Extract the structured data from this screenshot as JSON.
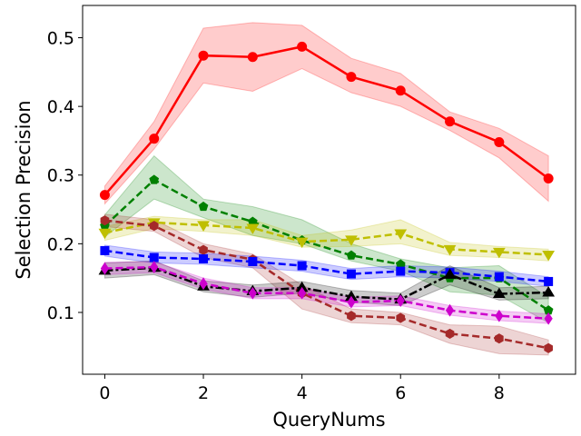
{
  "chart_data": {
    "type": "line",
    "title": "",
    "xlabel": "QueryNums",
    "ylabel": "Selection Precision",
    "xlim": [
      -0.45,
      9.55
    ],
    "ylim": [
      0.01,
      0.547
    ],
    "xticks": [
      0,
      2,
      4,
      6,
      8
    ],
    "yticks": [
      0.1,
      0.2,
      0.3,
      0.4,
      0.5
    ],
    "grid": false,
    "legend": "none",
    "x": [
      0,
      1,
      2,
      3,
      4,
      5,
      6,
      7,
      8,
      9
    ],
    "series": [
      {
        "color": "#ff0000",
        "line": "solid",
        "marker": "circle",
        "values": [
          0.271,
          0.353,
          0.474,
          0.472,
          0.487,
          0.443,
          0.423,
          0.378,
          0.348,
          0.295
        ],
        "lower": [
          0.258,
          0.338,
          0.434,
          0.422,
          0.455,
          0.42,
          0.4,
          0.365,
          0.325,
          0.262
        ],
        "upper": [
          0.284,
          0.378,
          0.514,
          0.522,
          0.518,
          0.47,
          0.448,
          0.392,
          0.368,
          0.328
        ]
      },
      {
        "color": "#008000",
        "line": "dashed",
        "marker": "pentagon",
        "values": [
          0.226,
          0.293,
          0.254,
          0.232,
          0.205,
          0.183,
          0.17,
          0.15,
          0.15,
          0.103
        ],
        "lower": [
          0.21,
          0.265,
          0.238,
          0.212,
          0.2,
          0.175,
          0.16,
          0.13,
          0.125,
          0.085
        ],
        "upper": [
          0.242,
          0.328,
          0.265,
          0.254,
          0.235,
          0.2,
          0.178,
          0.165,
          0.168,
          0.122
        ]
      },
      {
        "color": "#bfbf00",
        "line": "dashed",
        "marker": "triangle-down",
        "values": [
          0.216,
          0.231,
          0.227,
          0.223,
          0.203,
          0.206,
          0.215,
          0.192,
          0.188,
          0.184
        ],
        "lower": [
          0.205,
          0.222,
          0.218,
          0.212,
          0.195,
          0.196,
          0.2,
          0.183,
          0.18,
          0.175
        ],
        "upper": [
          0.225,
          0.24,
          0.235,
          0.235,
          0.212,
          0.22,
          0.235,
          0.202,
          0.196,
          0.192
        ]
      },
      {
        "color": "#a52a2a",
        "line": "dashed",
        "marker": "hexagon",
        "values": [
          0.234,
          0.226,
          0.191,
          0.177,
          0.128,
          0.095,
          0.092,
          0.069,
          0.062,
          0.048
        ],
        "lower": [
          0.225,
          0.218,
          0.18,
          0.165,
          0.105,
          0.085,
          0.082,
          0.055,
          0.04,
          0.038
        ],
        "upper": [
          0.243,
          0.235,
          0.2,
          0.185,
          0.14,
          0.105,
          0.1,
          0.082,
          0.08,
          0.06
        ]
      },
      {
        "color": "#0000ff",
        "line": "dashed",
        "marker": "square",
        "values": [
          0.19,
          0.18,
          0.178,
          0.174,
          0.168,
          0.156,
          0.16,
          0.158,
          0.152,
          0.145
        ],
        "lower": [
          0.182,
          0.172,
          0.17,
          0.165,
          0.16,
          0.148,
          0.152,
          0.15,
          0.145,
          0.138
        ],
        "upper": [
          0.198,
          0.188,
          0.186,
          0.182,
          0.176,
          0.164,
          0.168,
          0.166,
          0.16,
          0.152
        ]
      },
      {
        "color": "#000000",
        "line": "dashdot",
        "marker": "triangle-up",
        "values": [
          0.161,
          0.165,
          0.138,
          0.131,
          0.136,
          0.123,
          0.119,
          0.155,
          0.127,
          0.129
        ],
        "lower": [
          0.15,
          0.155,
          0.13,
          0.122,
          0.128,
          0.115,
          0.11,
          0.14,
          0.118,
          0.12
        ],
        "upper": [
          0.172,
          0.175,
          0.146,
          0.14,
          0.145,
          0.132,
          0.128,
          0.168,
          0.136,
          0.138
        ]
      },
      {
        "color": "#cc00cc",
        "line": "dashed",
        "marker": "diamond",
        "values": [
          0.164,
          0.166,
          0.142,
          0.128,
          0.128,
          0.115,
          0.117,
          0.103,
          0.095,
          0.091
        ],
        "lower": [
          0.155,
          0.158,
          0.134,
          0.12,
          0.12,
          0.108,
          0.11,
          0.096,
          0.088,
          0.084
        ],
        "upper": [
          0.173,
          0.174,
          0.15,
          0.136,
          0.136,
          0.122,
          0.124,
          0.11,
          0.102,
          0.098
        ]
      }
    ]
  }
}
